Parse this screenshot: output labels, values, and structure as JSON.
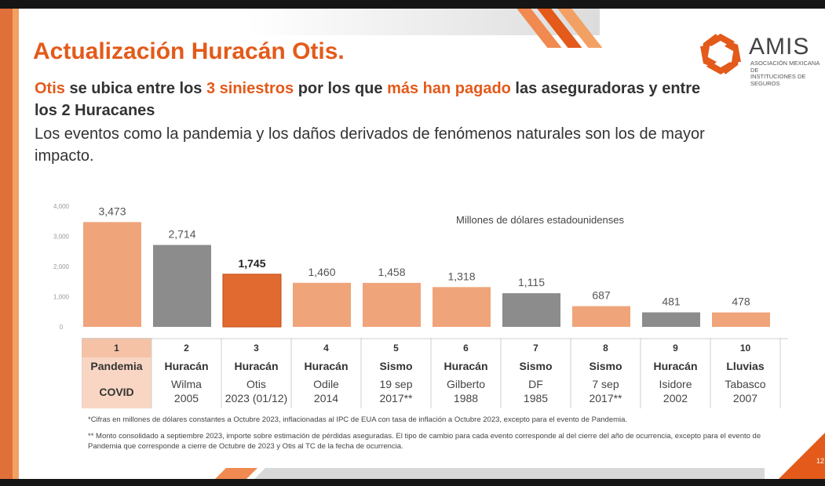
{
  "header": {
    "title": "Actualización Huracán Otis."
  },
  "brand": {
    "name": "AMIS",
    "subtitle_line1": "ASOCIACIÓN MEXICANA DE",
    "subtitle_line2": "INSTITUCIONES DE SEGUROS",
    "accent": "#e35a1a"
  },
  "subtitle": {
    "p1": "Otis",
    "p2": " se ubica entre los ",
    "p3": "3 siniestros",
    "p4": " por los que ",
    "p5": "más han pagado",
    "p6": " las aseguradoras y entre los 2 Huracanes",
    "p7": "Los eventos como la pandemia y los daños derivados de fenómenos naturales  son los de mayor impacto."
  },
  "chart_data": {
    "type": "bar",
    "title": "Millones de dólares estadounidenses",
    "ylim": [
      0,
      4000
    ],
    "yticks": [
      "4,000",
      "3,000",
      "2,000",
      "1,000",
      "0"
    ],
    "ytick_values": [
      4000,
      3000,
      2000,
      1000,
      0
    ],
    "categories": [
      "1",
      "2",
      "3",
      "4",
      "5",
      "6",
      "7",
      "8",
      "9",
      "10"
    ],
    "values": [
      3473,
      2714,
      1745,
      1460,
      1458,
      1318,
      1115,
      687,
      481,
      478
    ],
    "value_labels": [
      "3,473",
      "2,714",
      "1,745",
      "1,460",
      "1,458",
      "1,318",
      "1,115",
      "687",
      "481",
      "478"
    ],
    "bar_colors": [
      "#f0a47a",
      "#8c8c8c",
      "#e06a30",
      "#f0a47a",
      "#f0a47a",
      "#f0a47a",
      "#8c8c8c",
      "#f0a47a",
      "#8c8c8c",
      "#f0a47a"
    ],
    "highlight_index": 2
  },
  "table": {
    "rows": [
      {
        "rank": "1",
        "type": "Pandemia",
        "name": "COVID",
        "year": ""
      },
      {
        "rank": "2",
        "type": "Huracán",
        "name": "Wilma",
        "year": "2005"
      },
      {
        "rank": "3",
        "type": "Huracán",
        "name": "Otis",
        "year": "2023 (01/12)"
      },
      {
        "rank": "4",
        "type": "Huracán",
        "name": "Odile",
        "year": "2014"
      },
      {
        "rank": "5",
        "type": "Sismo",
        "name": "19 sep",
        "year": "2017**"
      },
      {
        "rank": "6",
        "type": "Huracán",
        "name": "Gilberto",
        "year": "1988"
      },
      {
        "rank": "7",
        "type": "Sismo",
        "name": "DF",
        "year": "1985"
      },
      {
        "rank": "8",
        "type": "Sismo",
        "name": "7 sep",
        "year": "2017**"
      },
      {
        "rank": "9",
        "type": "Huracán",
        "name": "Isidore",
        "year": "2002"
      },
      {
        "rank": "10",
        "type": "Lluvias",
        "name": "Tabasco",
        "year": "2007"
      }
    ]
  },
  "footnotes": {
    "note1": "*Cifras en millones de dólares constantes a Octubre 2023, inflacionadas al IPC de EUA con tasa de inflación a Octubre 2023, excepto para el evento de Pandemia.",
    "note2": "** Monto consolidado a septiembre 2023, importe sobre estimación de pérdidas aseguradas. El tipo de cambio para cada evento corresponde al del cierre del año de ocurrencia, excepto para el evento de Pandemia que corresponde a cierre de Octubre de 2023 y Otis al TC de la fecha de ocurrencia."
  },
  "page": {
    "number": "12"
  }
}
